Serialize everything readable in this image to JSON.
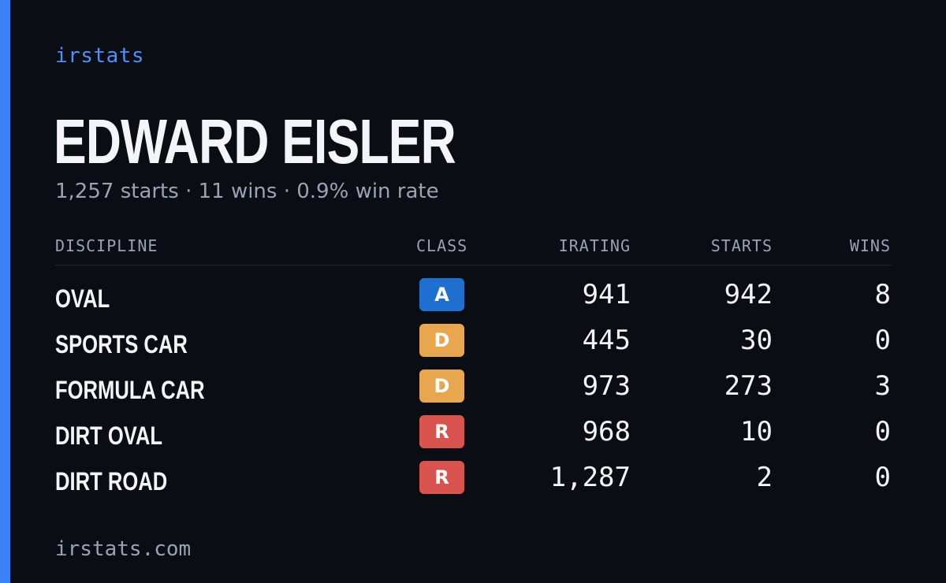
{
  "brand": "irstats",
  "driver": {
    "name": "EDWARD EISLER",
    "summary": "1,257 starts · 11 wins · 0.9% win rate"
  },
  "table": {
    "headers": {
      "discipline": "DISCIPLINE",
      "class": "CLASS",
      "irating": "IRATING",
      "starts": "STARTS",
      "wins": "WINS"
    },
    "rows": [
      {
        "discipline": "OVAL",
        "class": "A",
        "class_color": "#1f6fd1",
        "irating": "941",
        "starts": "942",
        "wins": "8"
      },
      {
        "discipline": "SPORTS CAR",
        "class": "D",
        "class_color": "#e8a74e",
        "irating": "445",
        "starts": "30",
        "wins": "0"
      },
      {
        "discipline": "FORMULA CAR",
        "class": "D",
        "class_color": "#e8a74e",
        "irating": "973",
        "starts": "273",
        "wins": "3"
      },
      {
        "discipline": "DIRT OVAL",
        "class": "R",
        "class_color": "#d9534f",
        "irating": "968",
        "starts": "10",
        "wins": "0"
      },
      {
        "discipline": "DIRT ROAD",
        "class": "R",
        "class_color": "#d9534f",
        "irating": "1,287",
        "starts": "2",
        "wins": "0"
      }
    ]
  },
  "footer": "irstats.com",
  "colors": {
    "accent": "#3b82f6",
    "background": "#0a0d14"
  }
}
